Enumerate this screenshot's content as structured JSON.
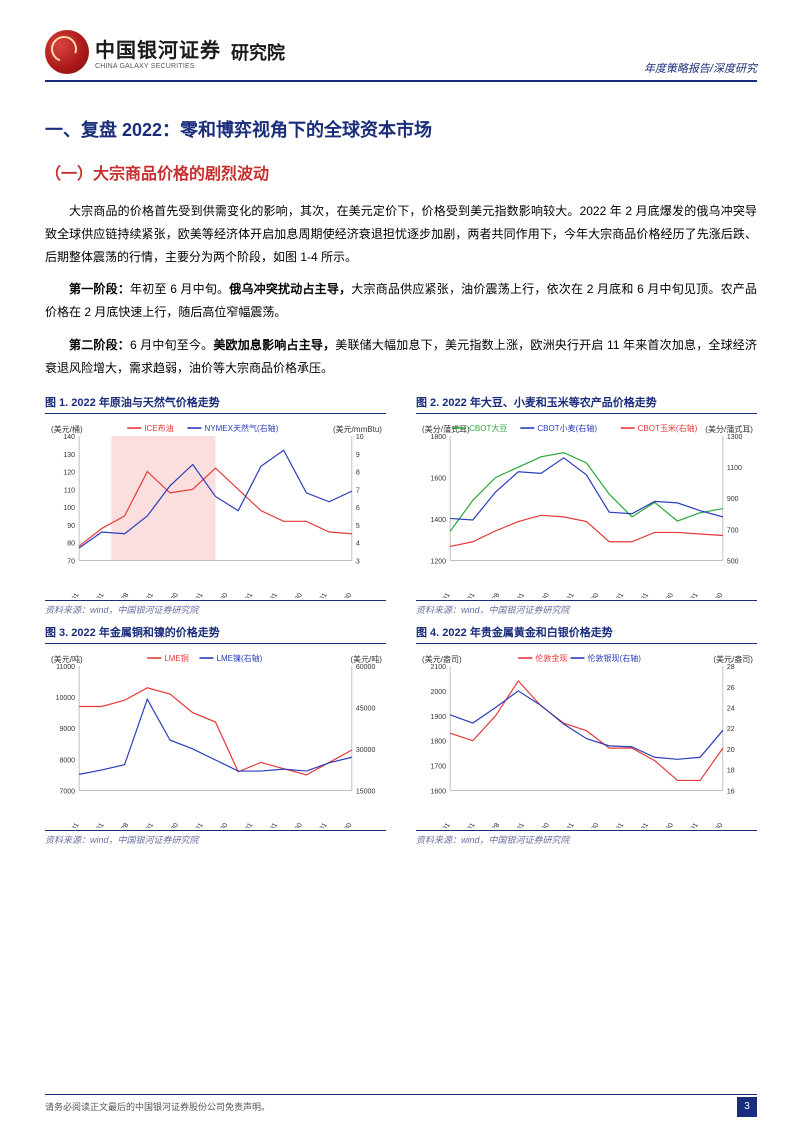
{
  "header": {
    "company_cn": "中国银河证券",
    "company_en": "CHINA GALAXY SECURITIES",
    "division": "研究院",
    "breadcrumb": "年度策略报告/深度研究"
  },
  "section": {
    "h1": "一、复盘 2022：零和博弈视角下的全球资本市场",
    "h2": "（一）大宗商品价格的剧烈波动",
    "p1": "大宗商品的价格首先受到供需变化的影响，其次，在美元定价下，价格受到美元指数影响较大。2022 年 2 月底爆发的俄乌冲突导致全球供应链持续紧张，欧美等经济体开启加息周期使经济衰退担忧逐步加剧，两者共同作用下，今年大宗商品价格经历了先涨后跌、后期整体震荡的行情，主要分为两个阶段，如图 1-4 所示。",
    "p2a": "第一阶段：",
    "p2b": "年初至 6 月中旬。",
    "p2c": "俄乌冲突扰动占主导，",
    "p2d": "大宗商品供应紧张，油价震荡上行，依次在 2 月底和 6 月中旬见顶。农产品价格在 2 月底快速上行，随后高位窄幅震荡。",
    "p3a": "第二阶段：",
    "p3b": "6 月中旬至今。",
    "p3c": "美欧加息影响占主导，",
    "p3d": "美联储大幅加息下，美元指数上涨，欧洲央行开启 11 年来首次加息，全球经济衰退风险增大，需求趋弱，油价等大宗商品价格承压。"
  },
  "charts": {
    "source_text": "资料来源：wind，中国银河证券研究院",
    "xticks": [
      "21-12-31",
      "22-01-31",
      "22-02-28",
      "22-03-31",
      "22-04-30",
      "22-05-31",
      "22-06-30",
      "22-07-31",
      "22-08-31",
      "22-09-30",
      "22-10-31",
      "22-11-30"
    ],
    "chart1": {
      "title": "图 1. 2022 年原油与天然气价格走势",
      "type": "line",
      "legend": [
        {
          "label": "ICE布油",
          "color": "#e63939"
        },
        {
          "label": "NYMEX天然气(右轴)",
          "color": "#2a3dbb"
        }
      ],
      "y_left": {
        "label": "(美元/桶)",
        "min": 70,
        "max": 140,
        "step": 10,
        "color": "#e63939"
      },
      "y_right": {
        "label": "(美元/mmBtu)",
        "min": 3,
        "max": 10,
        "step": 1,
        "color": "#2a3dbb"
      },
      "shade": {
        "from": 1.3,
        "to": 5.5,
        "color": "#fbdede"
      },
      "series1": [
        78,
        88,
        95,
        120,
        108,
        110,
        122,
        110,
        98,
        92,
        92,
        86,
        85
      ],
      "series2": [
        3.7,
        4.6,
        4.5,
        5.5,
        7.2,
        8.4,
        6.6,
        5.8,
        8.3,
        9.2,
        6.8,
        6.3,
        6.9
      ],
      "tick_fontsize": 7,
      "legend_fontsize": 8,
      "line_width": 1.2
    },
    "chart2": {
      "title": "图 2. 2022 年大豆、小麦和玉米等农产品价格走势",
      "type": "line",
      "legend": [
        {
          "label": "CBOT大豆",
          "color": "#2aa83a"
        },
        {
          "label": "CBOT小麦(右轴)",
          "color": "#2a3dbb"
        },
        {
          "label": "CBOT玉米(右轴)",
          "color": "#e63939"
        }
      ],
      "y_left": {
        "label": "(美分/蒲式耳)",
        "min": 1200,
        "max": 1800,
        "step": 200,
        "color": "#2aa83a"
      },
      "y_right": {
        "label": "(美分/蒲式耳)",
        "min": 500,
        "max": 1300,
        "step": 200,
        "color": "#e63939"
      },
      "series1": [
        1340,
        1490,
        1600,
        1650,
        1700,
        1720,
        1670,
        1520,
        1410,
        1480,
        1390,
        1430,
        1450
      ],
      "series2": [
        770,
        760,
        940,
        1070,
        1060,
        1160,
        1050,
        810,
        800,
        880,
        870,
        820,
        780
      ],
      "series3": [
        590,
        620,
        690,
        750,
        790,
        780,
        750,
        620,
        620,
        680,
        680,
        670,
        660
      ],
      "tick_fontsize": 7,
      "legend_fontsize": 8,
      "line_width": 1.2
    },
    "chart3": {
      "title": "图 3. 2022 年金属铜和镍的价格走势",
      "type": "line",
      "legend": [
        {
          "label": "LME铜",
          "color": "#e63939"
        },
        {
          "label": "LME镍(右轴)",
          "color": "#2a3dbb"
        }
      ],
      "y_left": {
        "label": "(美元/吨)",
        "min": 7000,
        "max": 11000,
        "step": 1000,
        "color": "#e63939"
      },
      "y_right": {
        "label": "(美元/吨)",
        "min": 15000,
        "max": 60000,
        "step": 15000,
        "color": "#2a3dbb"
      },
      "series1": [
        9700,
        9700,
        9900,
        10300,
        10100,
        9500,
        9200,
        7600,
        7900,
        7700,
        7500,
        7900,
        8300
      ],
      "series2": [
        20800,
        22400,
        24300,
        48000,
        33200,
        30000,
        26000,
        22000,
        22000,
        22700,
        22000,
        25000,
        27000
      ],
      "tick_fontsize": 7,
      "legend_fontsize": 8,
      "line_width": 1.2
    },
    "chart4": {
      "title": "图 4. 2022 年贵金属黄金和白银价格走势",
      "type": "line",
      "legend": [
        {
          "label": "伦敦金现",
          "color": "#e63939"
        },
        {
          "label": "伦敦银现(右轴)",
          "color": "#2a3dbb"
        }
      ],
      "y_left": {
        "label": "(美元/盎司)",
        "min": 1600,
        "max": 2100,
        "step": 100,
        "color": "#e63939"
      },
      "y_right": {
        "label": "(美元/盎司)",
        "min": 16,
        "max": 28,
        "step": 2,
        "color": "#2a3dbb"
      },
      "series1": [
        1830,
        1800,
        1900,
        2040,
        1940,
        1870,
        1840,
        1770,
        1770,
        1720,
        1640,
        1640,
        1770
      ],
      "series2": [
        23.3,
        22.5,
        24.0,
        25.6,
        24.2,
        22.4,
        21.0,
        20.3,
        20.2,
        19.2,
        19.0,
        19.2,
        21.8
      ],
      "tick_fontsize": 7,
      "legend_fontsize": 8,
      "line_width": 1.2
    }
  },
  "footer": {
    "disclaimer": "请务必阅读正文最后的中国银河证券股份公司免责声明。",
    "page_number": "3"
  }
}
